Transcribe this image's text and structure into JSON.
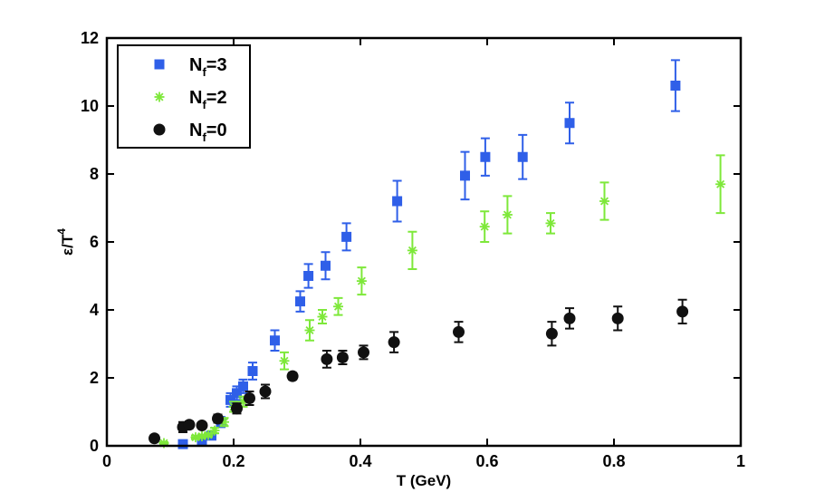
{
  "chart_data": {
    "type": "scatter",
    "title": "",
    "xlabel": "T (GeV)",
    "ylabel_main": "ε/T",
    "ylabel_sup": "4",
    "xlim": [
      0,
      1
    ],
    "ylim": [
      0,
      12
    ],
    "xticks": [
      0,
      0.2,
      0.4,
      0.6,
      0.8,
      1
    ],
    "xtick_labels": [
      "0",
      "0.2",
      "0.4",
      "0.6",
      "0.8",
      "1"
    ],
    "yticks": [
      0,
      2,
      4,
      6,
      8,
      10,
      12
    ],
    "ytick_labels": [
      "0",
      "2",
      "4",
      "6",
      "8",
      "10",
      "12"
    ],
    "legend_position": "top-left",
    "series": [
      {
        "name": "N_f=3",
        "legend_main": "N",
        "legend_sub": "f",
        "legend_rest": "=3",
        "marker": "square",
        "color": "#2f5fe8",
        "points": [
          {
            "x": 0.12,
            "y": 0.05,
            "err": 0.05
          },
          {
            "x": 0.15,
            "y": 0.15,
            "err": 0.08
          },
          {
            "x": 0.165,
            "y": 0.3,
            "err": 0.1
          },
          {
            "x": 0.18,
            "y": 0.7,
            "err": 0.15
          },
          {
            "x": 0.195,
            "y": 1.35,
            "err": 0.2
          },
          {
            "x": 0.205,
            "y": 1.55,
            "err": 0.2
          },
          {
            "x": 0.215,
            "y": 1.75,
            "err": 0.2
          },
          {
            "x": 0.23,
            "y": 2.2,
            "err": 0.25
          },
          {
            "x": 0.265,
            "y": 3.1,
            "err": 0.3
          },
          {
            "x": 0.305,
            "y": 4.25,
            "err": 0.3
          },
          {
            "x": 0.318,
            "y": 5.0,
            "err": 0.35
          },
          {
            "x": 0.345,
            "y": 5.3,
            "err": 0.4
          },
          {
            "x": 0.378,
            "y": 6.15,
            "err": 0.4
          },
          {
            "x": 0.458,
            "y": 7.2,
            "err": 0.6
          },
          {
            "x": 0.565,
            "y": 7.95,
            "err": 0.7
          },
          {
            "x": 0.597,
            "y": 8.5,
            "err": 0.55
          },
          {
            "x": 0.656,
            "y": 8.5,
            "err": 0.65
          },
          {
            "x": 0.73,
            "y": 9.5,
            "err": 0.6
          },
          {
            "x": 0.897,
            "y": 10.6,
            "err": 0.75
          }
        ]
      },
      {
        "name": "N_f=2",
        "legend_main": "N",
        "legend_sub": "f",
        "legend_rest": "=2",
        "marker": "asterisk",
        "color": "#7ee83a",
        "points": [
          {
            "x": 0.09,
            "y": 0.08,
            "err": 0.03
          },
          {
            "x": 0.14,
            "y": 0.25,
            "err": 0.05
          },
          {
            "x": 0.15,
            "y": 0.28,
            "err": 0.05
          },
          {
            "x": 0.16,
            "y": 0.32,
            "err": 0.05
          },
          {
            "x": 0.17,
            "y": 0.45,
            "err": 0.08
          },
          {
            "x": 0.185,
            "y": 0.7,
            "err": 0.12
          },
          {
            "x": 0.2,
            "y": 1.15,
            "err": 0.15
          },
          {
            "x": 0.215,
            "y": 1.3,
            "err": 0.15
          },
          {
            "x": 0.28,
            "y": 2.5,
            "err": 0.25
          },
          {
            "x": 0.32,
            "y": 3.4,
            "err": 0.3
          },
          {
            "x": 0.34,
            "y": 3.8,
            "err": 0.2
          },
          {
            "x": 0.365,
            "y": 4.1,
            "err": 0.25
          },
          {
            "x": 0.402,
            "y": 4.85,
            "err": 0.4
          },
          {
            "x": 0.482,
            "y": 5.75,
            "err": 0.55
          },
          {
            "x": 0.596,
            "y": 6.45,
            "err": 0.45
          },
          {
            "x": 0.632,
            "y": 6.8,
            "err": 0.55
          },
          {
            "x": 0.7,
            "y": 6.55,
            "err": 0.3
          },
          {
            "x": 0.785,
            "y": 7.2,
            "err": 0.55
          },
          {
            "x": 0.968,
            "y": 7.7,
            "err": 0.85
          }
        ]
      },
      {
        "name": "N_f=0",
        "legend_main": "N",
        "legend_sub": "f",
        "legend_rest": "=0",
        "marker": "circle",
        "color": "#111111",
        "points": [
          {
            "x": 0.075,
            "y": 0.22,
            "err": 0.03
          },
          {
            "x": 0.12,
            "y": 0.55,
            "err": 0.15
          },
          {
            "x": 0.13,
            "y": 0.62,
            "err": 0.1
          },
          {
            "x": 0.15,
            "y": 0.6,
            "err": 0.08
          },
          {
            "x": 0.175,
            "y": 0.8,
            "err": 0.12
          },
          {
            "x": 0.205,
            "y": 1.1,
            "err": 0.15
          },
          {
            "x": 0.225,
            "y": 1.4,
            "err": 0.2
          },
          {
            "x": 0.25,
            "y": 1.6,
            "err": 0.2
          },
          {
            "x": 0.293,
            "y": 2.05,
            "err": 0.1
          },
          {
            "x": 0.347,
            "y": 2.55,
            "err": 0.25
          },
          {
            "x": 0.372,
            "y": 2.6,
            "err": 0.2
          },
          {
            "x": 0.405,
            "y": 2.75,
            "err": 0.2
          },
          {
            "x": 0.453,
            "y": 3.05,
            "err": 0.3
          },
          {
            "x": 0.555,
            "y": 3.35,
            "err": 0.3
          },
          {
            "x": 0.702,
            "y": 3.3,
            "err": 0.35
          },
          {
            "x": 0.73,
            "y": 3.75,
            "err": 0.3
          },
          {
            "x": 0.806,
            "y": 3.75,
            "err": 0.35
          },
          {
            "x": 0.908,
            "y": 3.95,
            "err": 0.35
          }
        ]
      }
    ]
  }
}
